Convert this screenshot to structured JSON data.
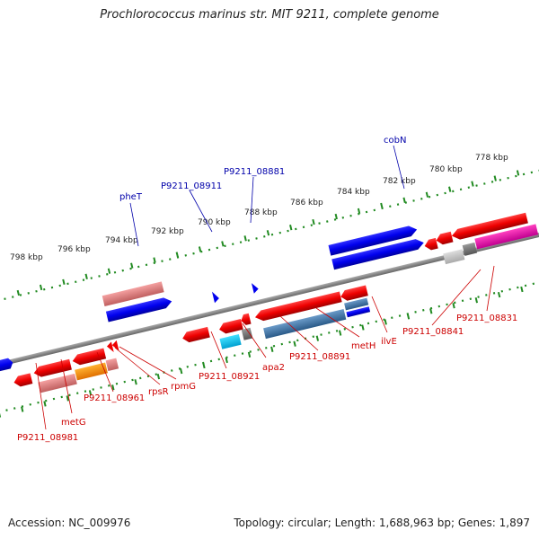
{
  "title": "Prochlorococcus marinus str. MIT 9211, complete genome",
  "footer": {
    "accession": "Accession: NC_009976",
    "info": "Topology: circular; Length: 1,688,963 bp; Genes: 1,897"
  },
  "colors": {
    "backbone": "#888888",
    "tick": "#228b22",
    "forward_gene": "#0000ee",
    "reverse_gene": "#ee0000",
    "label_blue": "#0000aa",
    "label_red": "#cc0000"
  },
  "ruler_labels": [
    "798 kbp",
    "796 kbp",
    "794 kbp",
    "792 kbp",
    "790 kbp",
    "788 kbp",
    "786 kbp",
    "784 kbp",
    "782 kbp",
    "780 kbp",
    "778 kbp"
  ],
  "top_labels": [
    "pheT",
    "P9211_08911",
    "P9211_08881",
    "cobN"
  ],
  "bottom_labels": [
    "P9211_08981",
    "metG",
    "P9211_08961",
    "rpsR",
    "rpmG",
    "P9211_08921",
    "apa2",
    "P9211_08891",
    "metH",
    "ilvE",
    "P9211_08841",
    "P9211_08831"
  ]
}
